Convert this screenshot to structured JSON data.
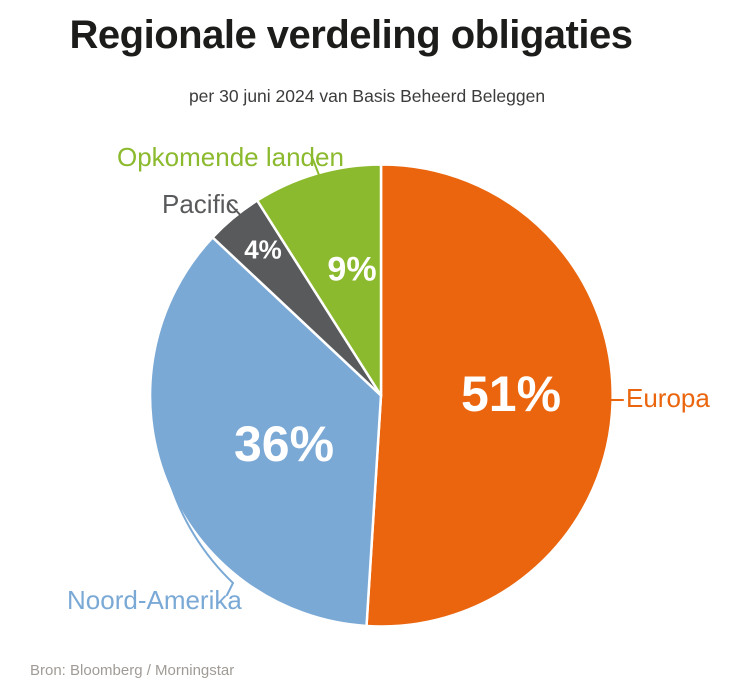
{
  "header": {
    "title": "Regionale verdeling obligaties",
    "subtitle": "per 30 juni 2024 van Basis Beheerd Beleggen"
  },
  "footer": {
    "source": "Bron: Bloomberg / Morningstar"
  },
  "chart_data": {
    "type": "pie",
    "title": "Regionale verdeling obligaties",
    "subtitle": "per 30 juni 2024 van Basis Beheerd Beleggen",
    "source": "Bron: Bloomberg / Morningstar",
    "units": "%",
    "start_angle_deg": 0,
    "direction": "clockwise",
    "legend_position": "labels-outside-with-leader-lines",
    "value_label_color": "#ffffff",
    "slices": [
      {
        "label": "Europa",
        "value_pct": 51,
        "pct_label": "51%",
        "color": "#EA650D"
      },
      {
        "label": "Noord-Amerika",
        "value_pct": 36,
        "pct_label": "36%",
        "color": "#7BA9D6"
      },
      {
        "label": "Pacific",
        "value_pct": 4,
        "pct_label": "4%",
        "color": "#595A5C"
      },
      {
        "label": "Opkomende landen",
        "value_pct": 9,
        "pct_label": "9%",
        "color": "#8CBA2E"
      }
    ]
  }
}
